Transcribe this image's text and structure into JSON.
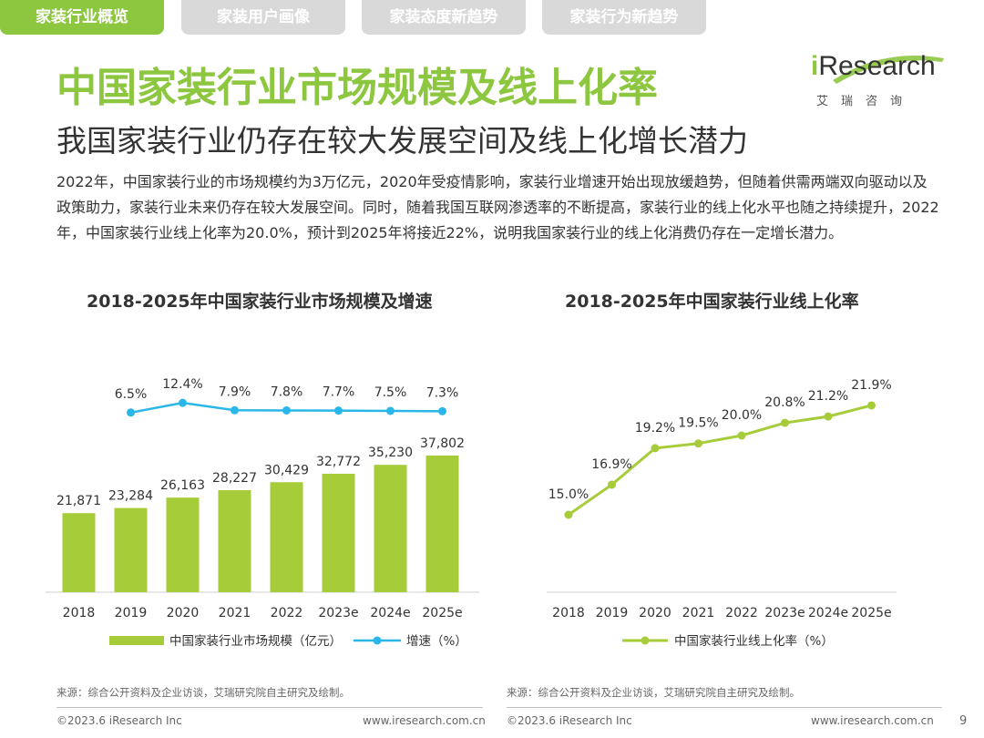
{
  "tabs": [
    {
      "label": "家装行业概览",
      "active": true
    },
    {
      "label": "家装用户画像",
      "active": false
    },
    {
      "label": "家装态度新趋势",
      "active": false
    },
    {
      "label": "家装行为新趋势",
      "active": false
    }
  ],
  "logo": {
    "brand": "iResearch",
    "cn": "艾瑞咨询"
  },
  "title": "中国家装行业市场规模及线上化率",
  "subtitle": "我国家装行业仍存在较大发展空间及线上化增长潜力",
  "body": "2022年，中国家装行业的市场规模约为3万亿元，2020年受疫情影响，家装行业增速开始出现放缓趋势，但随着供需两端双向驱动以及政策助力，家装行业未来仍存在较大发展空间。同时，随着我国互联网渗透率的不断提高，家装行业的线上化水平也随之持续提升，2022年，中国家装行业线上化率为20.0%，预计到2025年将接近22%，说明我国家装行业的线上化消费仍存在一定增长潜力。",
  "colors": {
    "accent": "#8dc63f",
    "line_blue": "#29b6e8",
    "tab_inactive": "#d9d9d9"
  },
  "source_left": "来源：综合公开资料及企业访谈，艾瑞研究院自主研究及绘制。",
  "source_right": "来源：综合公开资料及企业访谈，艾瑞研究院自主研究及绘制。",
  "footer": {
    "copyright_left": "©2023.6 iResearch Inc",
    "url_left": "www.iresearch.com.cn",
    "copyright_right": "©2023.6 iResearch Inc",
    "url_right": "www.iresearch.com.cn",
    "page_number": "9"
  },
  "chart_data": [
    {
      "type": "bar",
      "title": "2018-2025年中国家装行业市场规模及增速",
      "categories": [
        "2018",
        "2019",
        "2020",
        "2021",
        "2022",
        "2023e",
        "2024e",
        "2025e"
      ],
      "series": [
        {
          "name": "中国家装行业市场规模（亿元）",
          "type": "bar",
          "color": "#a6cc39",
          "values": [
            21871,
            23284,
            26163,
            28227,
            30429,
            32772,
            35230,
            37802
          ],
          "labels": [
            "21,871",
            "23,284",
            "26,163",
            "28,227",
            "30,429",
            "32,772",
            "35,230",
            "37,802"
          ]
        },
        {
          "name": "增速（%）",
          "type": "line",
          "color": "#29b6e8",
          "values": [
            6.5,
            12.4,
            7.9,
            7.8,
            7.7,
            7.5,
            7.3
          ],
          "x": [
            "2019",
            "2020",
            "2021",
            "2022",
            "2023e",
            "2024e",
            "2025e"
          ],
          "labels": [
            "6.5%",
            "12.4%",
            "7.9%",
            "7.8%",
            "7.7%",
            "7.5%",
            "7.3%"
          ]
        }
      ],
      "legend": "bottom",
      "grid": false
    },
    {
      "type": "line",
      "title": "2018-2025年中国家装行业线上化率",
      "categories": [
        "2018",
        "2019",
        "2020",
        "2021",
        "2022",
        "2023e",
        "2024e",
        "2025e"
      ],
      "series": [
        {
          "name": "中国家装行业线上化率（%）",
          "color": "#a6cc39",
          "values": [
            15.0,
            16.9,
            19.2,
            19.5,
            20.0,
            20.8,
            21.2,
            21.9
          ],
          "labels": [
            "15.0%",
            "16.9%",
            "19.2%",
            "19.5%",
            "20.0%",
            "20.8%",
            "21.2%",
            "21.9%"
          ]
        }
      ],
      "legend": "bottom",
      "grid": false
    }
  ]
}
